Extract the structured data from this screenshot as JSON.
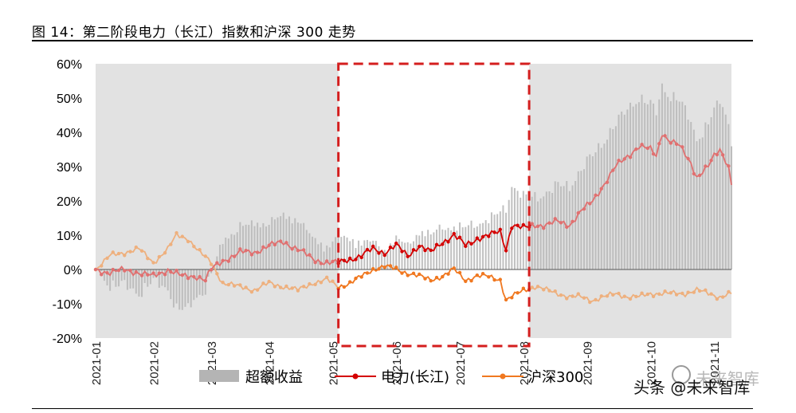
{
  "title": "图 14：第二阶段电力（长江）指数和沪深 300 走势",
  "watermark": "头条 @未来智库",
  "watermark_brand": "未来智库",
  "chart_data": {
    "type": "line+bar",
    "ylim": [
      -20,
      60
    ],
    "yticks": [
      "60%",
      "50%",
      "40%",
      "30%",
      "20%",
      "10%",
      "0%",
      "-10%",
      "-20%"
    ],
    "ytick_values": [
      60,
      50,
      40,
      30,
      20,
      10,
      0,
      -10,
      -20
    ],
    "xticks": [
      "2021-01",
      "2021-02",
      "2021-03",
      "2021-04",
      "2021-05",
      "2021-06",
      "2021-07",
      "2021-08",
      "2021-09",
      "2021-10",
      "2021-11"
    ],
    "x_range": [
      0,
      220
    ],
    "xtick_positions": [
      0,
      20,
      40,
      60,
      82,
      104,
      126,
      148,
      170,
      192,
      214
    ],
    "highlight_range": [
      84,
      150
    ],
    "legend": [
      "超额收益",
      "电力(长江)",
      "沪深300"
    ],
    "colors": {
      "excess": "#c8c8c8",
      "power": "#d40000",
      "hs300": "#f07820",
      "highlight_box": "#d41e1e",
      "bg": "#e2e2e2"
    },
    "power_anchors": [
      [
        0,
        0
      ],
      [
        5,
        -1
      ],
      [
        10,
        0
      ],
      [
        15,
        -1
      ],
      [
        20,
        -2
      ],
      [
        25,
        0
      ],
      [
        30,
        -2
      ],
      [
        35,
        -2
      ],
      [
        38,
        -3
      ],
      [
        40,
        0
      ],
      [
        45,
        3
      ],
      [
        50,
        5
      ],
      [
        55,
        5
      ],
      [
        60,
        7
      ],
      [
        65,
        8
      ],
      [
        70,
        6
      ],
      [
        75,
        3
      ],
      [
        80,
        2
      ],
      [
        84,
        2
      ],
      [
        88,
        3
      ],
      [
        92,
        4
      ],
      [
        96,
        6
      ],
      [
        100,
        5
      ],
      [
        104,
        7
      ],
      [
        108,
        4
      ],
      [
        112,
        7
      ],
      [
        116,
        5
      ],
      [
        120,
        8
      ],
      [
        124,
        10
      ],
      [
        128,
        7
      ],
      [
        132,
        9
      ],
      [
        136,
        10
      ],
      [
        140,
        11
      ],
      [
        142,
        6
      ],
      [
        144,
        13
      ],
      [
        148,
        12
      ],
      [
        152,
        13
      ],
      [
        156,
        13
      ],
      [
        160,
        14
      ],
      [
        164,
        13
      ],
      [
        168,
        17
      ],
      [
        172,
        20
      ],
      [
        176,
        25
      ],
      [
        180,
        30
      ],
      [
        184,
        33
      ],
      [
        188,
        36
      ],
      [
        192,
        35
      ],
      [
        194,
        33
      ],
      [
        196,
        40
      ],
      [
        198,
        38
      ],
      [
        202,
        36
      ],
      [
        206,
        31
      ],
      [
        208,
        27
      ],
      [
        212,
        30
      ],
      [
        214,
        33
      ],
      [
        216,
        35
      ],
      [
        218,
        32
      ],
      [
        219,
        30
      ],
      [
        220,
        25
      ]
    ],
    "hs300_anchors": [
      [
        0,
        0
      ],
      [
        5,
        4
      ],
      [
        10,
        5
      ],
      [
        15,
        6
      ],
      [
        20,
        2
      ],
      [
        25,
        6
      ],
      [
        28,
        10
      ],
      [
        32,
        9
      ],
      [
        36,
        5
      ],
      [
        40,
        2
      ],
      [
        44,
        -4
      ],
      [
        50,
        -5
      ],
      [
        55,
        -6
      ],
      [
        60,
        -4
      ],
      [
        65,
        -5
      ],
      [
        70,
        -6
      ],
      [
        75,
        -4
      ],
      [
        80,
        -3
      ],
      [
        84,
        -5
      ],
      [
        88,
        -4
      ],
      [
        92,
        -2
      ],
      [
        96,
        0
      ],
      [
        100,
        1
      ],
      [
        104,
        0
      ],
      [
        108,
        -1
      ],
      [
        112,
        -2
      ],
      [
        116,
        -3
      ],
      [
        120,
        -2
      ],
      [
        124,
        0
      ],
      [
        128,
        -3
      ],
      [
        132,
        -2
      ],
      [
        136,
        -2
      ],
      [
        140,
        -3
      ],
      [
        142,
        -9
      ],
      [
        144,
        -8
      ],
      [
        148,
        -6
      ],
      [
        152,
        -5
      ],
      [
        156,
        -6
      ],
      [
        160,
        -7
      ],
      [
        164,
        -8
      ],
      [
        168,
        -8
      ],
      [
        172,
        -9
      ],
      [
        176,
        -8
      ],
      [
        180,
        -7
      ],
      [
        184,
        -8
      ],
      [
        188,
        -8
      ],
      [
        192,
        -7
      ],
      [
        196,
        -7
      ],
      [
        200,
        -7
      ],
      [
        204,
        -7
      ],
      [
        208,
        -6
      ],
      [
        212,
        -7
      ],
      [
        216,
        -8
      ],
      [
        220,
        -7
      ]
    ]
  }
}
